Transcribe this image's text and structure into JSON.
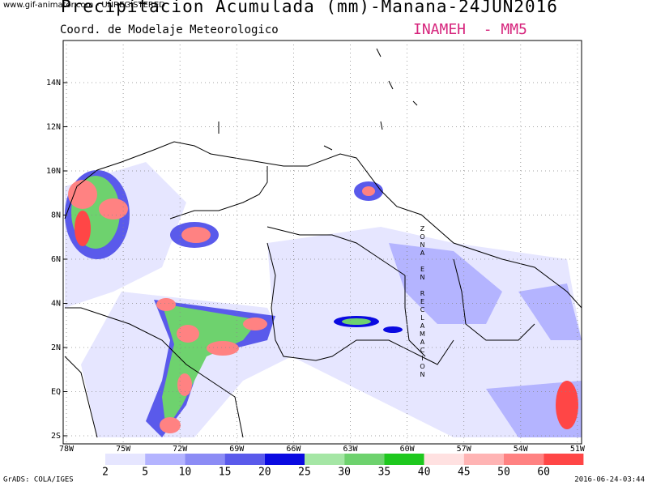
{
  "watermark": "www.gif-animator.com - UNREGISTERED",
  "title": "Precipitacion Acumulada (mm)-Manana-24JUN2016",
  "subtitle": "Coord. de Modelaje Meteorologico",
  "agency": "INAMEH  - MM5",
  "lat_labels": [
    "14N",
    "12N",
    "10N",
    "8N",
    "6N",
    "4N",
    "2N",
    "EQ",
    "2S"
  ],
  "lon_labels": [
    "78W",
    "75W",
    "72W",
    "69W",
    "66W",
    "63W",
    "60W",
    "57W",
    "54W",
    "51W"
  ],
  "zone_label": "ZONA EN RECLAMACION",
  "colorbar": {
    "levels": [
      2,
      5,
      10,
      15,
      20,
      25,
      30,
      35,
      40,
      45,
      50,
      60
    ],
    "colors": [
      "#e6e6ff",
      "#b4b4ff",
      "#8c8cf5",
      "#5a5aeb",
      "#0a0ae1",
      "#a5e6a5",
      "#6ed26e",
      "#1ec81e",
      "#ffe1e1",
      "#ffb4b4",
      "#ff8282",
      "#ff4646"
    ]
  },
  "footer_left": "GrADS: COLA/IGES",
  "footer_right": "2016-06-24-03:44"
}
